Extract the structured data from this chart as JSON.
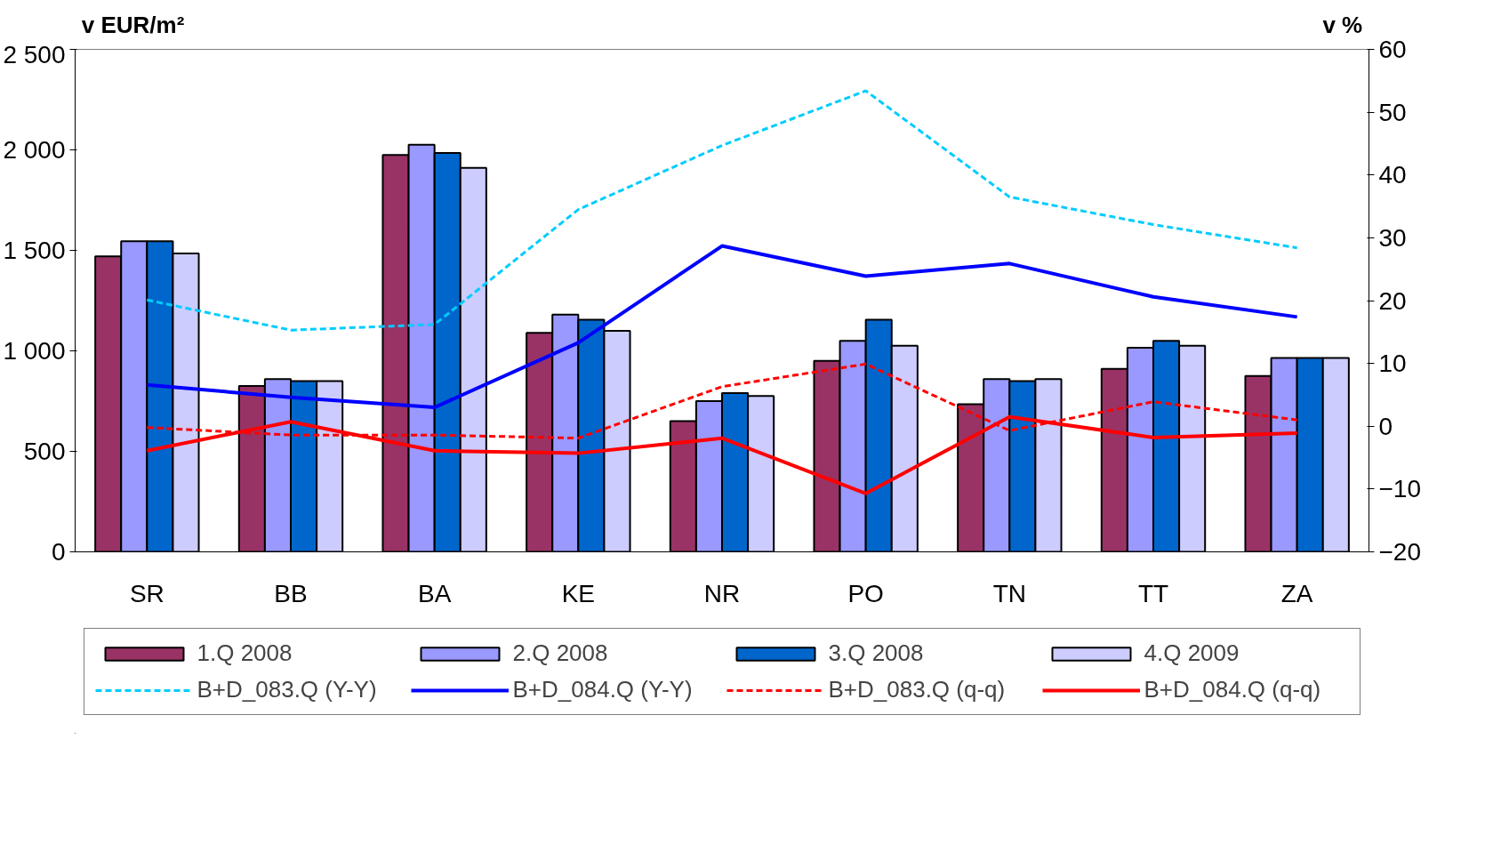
{
  "chart_data": {
    "type": "bar",
    "ylabel": "v EUR/m²",
    "y2label": "v %",
    "categories": [
      "SR",
      "BB",
      "BA",
      "KE",
      "NR",
      "PO",
      "TN",
      "TT",
      "ZA"
    ],
    "ylim": [
      0,
      2500
    ],
    "yticks": [
      0,
      500,
      {
        "value": 1000,
        "label": "1 000"
      },
      {
        "value": 1500,
        "label": "1 500"
      },
      {
        "value": 2000,
        "label": "2 000"
      },
      {
        "value": 2500,
        "label": "2 500"
      }
    ],
    "y2lim": [
      -20,
      60
    ],
    "y2ticks": [
      -20,
      -10,
      0,
      10,
      20,
      30,
      40,
      50,
      60
    ],
    "grid": false,
    "legend": "bottom",
    "series": [
      {
        "name": "1.Q 2008",
        "color": "#993366",
        "values": [
          1470,
          825,
          1975,
          1090,
          650,
          950,
          735,
          910,
          875
        ]
      },
      {
        "name": "2.Q 2008",
        "color": "#9999ff",
        "values": [
          1545,
          860,
          2025,
          1180,
          750,
          1050,
          860,
          1015,
          965
        ]
      },
      {
        "name": "3.Q 2008",
        "color": "#0066cc",
        "values": [
          1545,
          850,
          1985,
          1155,
          790,
          1155,
          850,
          1050,
          965
        ]
      },
      {
        "name": "4.Q 2009",
        "color": "#ccccff",
        "values": [
          1485,
          850,
          1910,
          1100,
          775,
          1025,
          860,
          1025,
          965
        ]
      },
      {
        "name": "B+D_083.Q (Y-Y)",
        "type": "line",
        "axis": "y2",
        "line_style": "dashed",
        "color": "#00ccff",
        "values": [
          20.1,
          15.3,
          16.2,
          34.5,
          44.7,
          53.4,
          36.5,
          32.1,
          28.4
        ]
      },
      {
        "name": "B+D_084.Q (Y-Y)",
        "type": "line",
        "axis": "y2",
        "line_style": "solid",
        "color": "#0000ff",
        "values": [
          6.6,
          4.6,
          3.0,
          13.3,
          28.7,
          23.9,
          25.9,
          20.6,
          17.4
        ]
      },
      {
        "name": "B+D_083.Q (q-q)",
        "type": "line",
        "axis": "y2",
        "line_style": "dashed",
        "color": "#ff0000",
        "values": [
          -0.2,
          -1.4,
          -1.4,
          -1.9,
          6.3,
          9.9,
          -0.7,
          3.9,
          1.0
        ]
      },
      {
        "name": "B+D_084.Q (q-q)",
        "type": "line",
        "axis": "y2",
        "line_style": "solid",
        "color": "#ff0000",
        "values": [
          -3.9,
          0.7,
          -3.9,
          -4.3,
          -1.9,
          -10.7,
          1.5,
          -1.8,
          -1.1
        ]
      }
    ]
  }
}
